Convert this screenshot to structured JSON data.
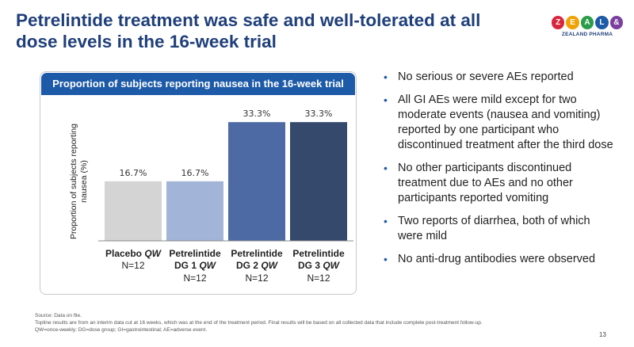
{
  "slide": {
    "title": "Petrelintide treatment was safe and well-tolerated at all dose levels in the 16-week trial",
    "page_number": "13"
  },
  "logo": {
    "letters": [
      "Z",
      "E",
      "A",
      "L",
      "&"
    ],
    "letter_colors": [
      "#d7263d",
      "#f0a202",
      "#2a9d4a",
      "#1d5aa8",
      "#7b3fa0"
    ],
    "text": "ZEALAND PHARMA"
  },
  "panel": {
    "header": "Proportion of subjects reporting nausea in the 16-week trial"
  },
  "chart_data": {
    "type": "bar",
    "title": "Proportion of subjects reporting nausea in the 16-week trial",
    "ylabel": "Proportion of subjects reporting nausea (%)",
    "xlabel": "",
    "ylim": [
      0,
      40
    ],
    "grid": false,
    "categories": [
      {
        "line1": "Placebo",
        "line1_italic": "QW",
        "line2": "N=12",
        "line3": ""
      },
      {
        "line1": "Petrelintide",
        "line1_italic": "",
        "line2": "DG 1",
        "line2_italic": "QW",
        "line3": "N=12"
      },
      {
        "line1": "Petrelintide",
        "line1_italic": "",
        "line2": "DG 2",
        "line2_italic": "QW",
        "line3": "N=12"
      },
      {
        "line1": "Petrelintide",
        "line1_italic": "",
        "line2": "DG 3",
        "line2_italic": "QW",
        "line3": "N=12"
      }
    ],
    "values": [
      16.7,
      16.7,
      33.3,
      33.3
    ],
    "value_labels": [
      "16.7%",
      "16.7%",
      "33.3%",
      "33.3%"
    ],
    "colors": [
      "#d4d4d4",
      "#a2b4d7",
      "#4d6aa5",
      "#34496b"
    ]
  },
  "bullets": [
    "No serious or severe AEs reported",
    "All GI AEs were mild except for two moderate events (nausea and vomiting) reported by one participant who discontinued treatment after the third dose",
    "No other participants discontinued treatment due to AEs and no other participants reported vomiting",
    "Two reports of diarrhea, both of which were mild",
    "No anti-drug antibodies were observed"
  ],
  "bullet_symbol": "•",
  "footnotes": [
    "Source: Data on file.",
    "Topline results are from an interim data cut at 16 weeks, which was at the end of the treatment period. Final results will be based on all collected data that include complete post-treatment follow-up.",
    "QW=once-weekly; DG=dose group; GI=gastrointestinal; AE=adverse event."
  ]
}
